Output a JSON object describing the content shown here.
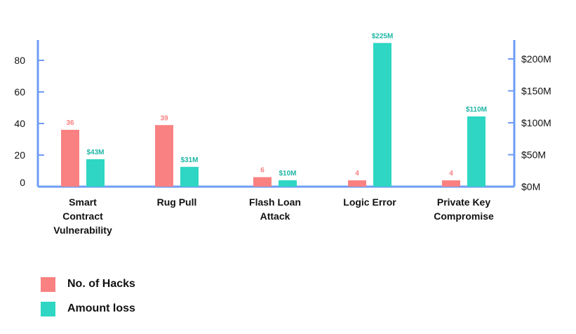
{
  "chart_data": {
    "type": "bar",
    "categories": [
      [
        "Smart",
        "Contract",
        "Vulnerability"
      ],
      [
        "Rug Pull"
      ],
      [
        "Flash Loan",
        "Attack"
      ],
      [
        "Logic Error"
      ],
      [
        "Private Key",
        "Compromise"
      ]
    ],
    "series": [
      {
        "name": "No. of Hacks",
        "axis": "left",
        "color": "#F98181",
        "values": [
          36,
          39,
          6,
          4,
          4
        ],
        "labels": [
          "36",
          "39",
          "6",
          "4",
          "4"
        ]
      },
      {
        "name": "Amount loss",
        "axis": "right",
        "color": "#2ED6C3",
        "values": [
          43,
          31,
          10,
          225,
          110
        ],
        "labels": [
          "$43M",
          "$31M",
          "$10M",
          "$225M",
          "$110M"
        ]
      }
    ],
    "left_axis": {
      "ylim": [
        0,
        100
      ],
      "ticks": [
        0,
        20,
        40,
        60,
        80
      ],
      "tick_labels": [
        "0",
        "20",
        "40",
        "60",
        "80"
      ]
    },
    "right_axis": {
      "ylim": [
        0,
        250
      ],
      "ticks": [
        0,
        50,
        100,
        150,
        200
      ],
      "tick_labels": [
        "$0M",
        "$50M",
        "$100M",
        "$150M",
        "$200M"
      ],
      "unit": "$M"
    },
    "axis_color": "#6E9CF5",
    "grid": false,
    "legend_position": "bottom-left"
  },
  "legend": {
    "items": [
      {
        "label": "No. of Hacks",
        "color": "#F98181"
      },
      {
        "label": "Amount loss",
        "color": "#2ED6C3"
      }
    ]
  }
}
